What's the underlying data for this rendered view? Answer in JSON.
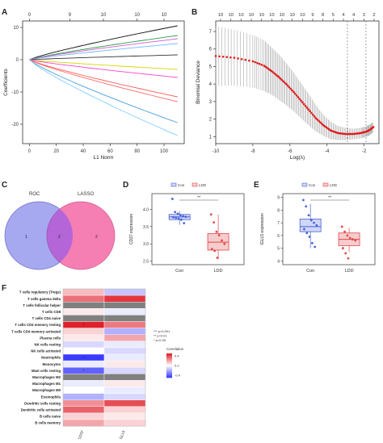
{
  "panels": {
    "A": {
      "letter": "A",
      "xlabel": "L1 Norm",
      "ylabel": "Coefficients",
      "top_ticks": [
        "0",
        "9",
        "10",
        "10",
        "10"
      ],
      "x_ticks": [
        "0",
        "20",
        "40",
        "60",
        "80",
        "100"
      ],
      "y_ticks": [
        "10",
        "0",
        "-10",
        "-20"
      ]
    },
    "B": {
      "letter": "B",
      "xlabel": "Log(λ)",
      "ylabel": "Binomial Deviance",
      "top_ticks": [
        "10",
        "10",
        "10",
        "10",
        "10",
        "10",
        "10",
        "10",
        "10",
        "9",
        "8",
        "5",
        "4",
        "4",
        "3",
        "2"
      ],
      "x_ticks": [
        "-10",
        "-8",
        "-6",
        "-4",
        "-2"
      ],
      "y_ticks": [
        "1",
        "2",
        "3",
        "4",
        "5",
        "6",
        "7"
      ]
    },
    "C": {
      "letter": "C",
      "left_label": "ROC",
      "right_label": "LASSO",
      "left_only": "1",
      "intersection": "2",
      "right_only": "2"
    },
    "D": {
      "letter": "D",
      "ylabel": "CD37 expression",
      "legend": [
        "Con",
        "LDD"
      ],
      "groups": [
        "Con",
        "LDD"
      ],
      "signif": "**",
      "y_ticks": [
        "4.0",
        "3.5",
        "3.0",
        "2.5"
      ]
    },
    "E": {
      "letter": "E",
      "ylabel": "IGLL5 expression",
      "legend": [
        "Con",
        "LDD"
      ],
      "groups": [
        "Con",
        "LDD"
      ],
      "signif": "**",
      "y_ticks": [
        "9",
        "8",
        "7",
        "6",
        "5",
        "4"
      ]
    },
    "F": {
      "letter": "F",
      "rows": [
        "T cells regulatory (Tregs)",
        "T cells gamma delta",
        "T cells follicular helper",
        "T cells CD8",
        "T cells CD4 naive",
        "T cells CD4 memory resting",
        "T cells CD4 memory activated",
        "Plasma cells",
        "NK cells resting",
        "NK cells activated",
        "Neutrophils",
        "Monocytes",
        "Mast cells resting",
        "Macrophages M2",
        "Macrophages M1",
        "Macrophages M0",
        "Eosinophils",
        "Dendritic cells resting",
        "Dendritic cells activated",
        "B cells naive",
        "B cells memory"
      ],
      "cols": [
        "CD37",
        "IGLL5"
      ],
      "legend_sig": [
        "*** p<0.001",
        "** p<0.01",
        "* p<0.05"
      ],
      "legend_title": "Correlation",
      "legend_ticks": [
        "0.4",
        "0.0",
        "-0.4"
      ]
    }
  },
  "chart_data": [
    {
      "type": "line",
      "title": "",
      "xlabel": "L1 Norm",
      "ylabel": "Coefficients",
      "xlim": [
        -5,
        115
      ],
      "ylim": [
        -26,
        12
      ],
      "series": [
        {
          "color": "#111111",
          "x": [
            0,
            110
          ],
          "y": [
            0,
            10.5
          ]
        },
        {
          "color": "#2a9d4a",
          "x": [
            0,
            110
          ],
          "y": [
            0,
            7.5
          ]
        },
        {
          "color": "#d65bd0",
          "x": [
            0,
            110
          ],
          "y": [
            0,
            6.5
          ]
        },
        {
          "color": "#6fb6ff",
          "x": [
            0,
            110
          ],
          "y": [
            0,
            5.0
          ]
        },
        {
          "color": "#333333",
          "x": [
            0,
            110
          ],
          "y": [
            0,
            1.5
          ]
        },
        {
          "color": "#d6d600",
          "x": [
            0,
            110
          ],
          "y": [
            0,
            -3.0
          ]
        },
        {
          "color": "#ff3fd0",
          "x": [
            0,
            110
          ],
          "y": [
            0,
            -5.5
          ]
        },
        {
          "color": "#ff5a5a",
          "x": [
            0,
            110
          ],
          "y": [
            0,
            -11.5
          ]
        },
        {
          "color": "#ff6a6a",
          "x": [
            0,
            110
          ],
          "y": [
            0,
            -13.0
          ]
        },
        {
          "color": "#4a9fe0",
          "x": [
            0,
            110
          ],
          "y": [
            0,
            -19.5
          ]
        },
        {
          "color": "#7fd0ff",
          "x": [
            0,
            110
          ],
          "y": [
            0,
            -23.5
          ]
        }
      ]
    },
    {
      "type": "line",
      "title": "",
      "xlabel": "Log(λ)",
      "ylabel": "Binomial Deviance",
      "xlim": [
        -10,
        -1.2
      ],
      "ylim": [
        0.6,
        7.6
      ],
      "vlines": [
        -2.9,
        -1.9
      ],
      "series": [
        {
          "x": [
            -10,
            -9.0,
            -8.0,
            -7.4,
            -7.0,
            -6.6,
            -6.2,
            -5.8,
            -5.4,
            -5.0,
            -4.6,
            -4.2,
            -3.8,
            -3.4,
            -3.0,
            -2.6,
            -2.2,
            -1.9,
            -1.7,
            -1.5
          ],
          "y": [
            5.6,
            5.5,
            5.3,
            5.05,
            4.75,
            4.4,
            4.0,
            3.55,
            3.05,
            2.55,
            2.05,
            1.65,
            1.35,
            1.2,
            1.15,
            1.15,
            1.2,
            1.28,
            1.38,
            1.55
          ],
          "err": [
            1.7,
            1.6,
            1.5,
            1.45,
            1.35,
            1.3,
            1.2,
            1.1,
            1.0,
            0.9,
            0.75,
            0.6,
            0.5,
            0.4,
            0.35,
            0.3,
            0.3,
            0.3,
            0.3,
            0.3
          ]
        }
      ]
    },
    {
      "type": "scatter",
      "title": "",
      "ylabel": "CD37 expression",
      "categories": [
        "Con",
        "LDD"
      ],
      "ylim": [
        2.4,
        4.45
      ],
      "box": [
        {
          "min": 3.55,
          "q1": 3.7,
          "median": 3.78,
          "q3": 3.85,
          "max": 3.95
        },
        {
          "min": 2.55,
          "q1": 2.82,
          "median": 3.05,
          "q3": 3.3,
          "max": 3.85
        }
      ],
      "points": [
        [
          4.3,
          3.92,
          3.87,
          3.83,
          3.8,
          3.78,
          3.77,
          3.75,
          3.73,
          3.7,
          3.6
        ],
        [
          3.85,
          3.62,
          3.35,
          3.25,
          3.1,
          3.0,
          2.85,
          2.8,
          2.6
        ]
      ]
    },
    {
      "type": "scatter",
      "title": "",
      "ylabel": "IGLL5 expression",
      "categories": [
        "Con",
        "LDD"
      ],
      "ylim": [
        3.7,
        9.3
      ],
      "box": [
        {
          "min": 5.0,
          "q1": 6.3,
          "median": 6.7,
          "q3": 7.3,
          "max": 8.5
        },
        {
          "min": 4.7,
          "q1": 5.2,
          "median": 5.7,
          "q3": 6.2,
          "max": 6.6
        }
      ],
      "points": [
        [
          8.8,
          8.3,
          7.6,
          7.2,
          7.0,
          6.8,
          6.5,
          6.2,
          5.9,
          5.4,
          5.1
        ],
        [
          6.7,
          6.3,
          6.0,
          5.8,
          5.7,
          5.6,
          5.0,
          4.6,
          4.2
        ]
      ]
    },
    {
      "type": "heatmap",
      "title": "",
      "x": [
        "CD37",
        "IGLL5"
      ],
      "y": [
        "T cells regulatory (Tregs)",
        "T cells gamma delta",
        "T cells follicular helper",
        "T cells CD8",
        "T cells CD4 naive",
        "T cells CD4 memory resting",
        "T cells CD4 memory activated",
        "Plasma cells",
        "NK cells resting",
        "NK cells activated",
        "Neutrophils",
        "Monocytes",
        "Mast cells resting",
        "Macrophages M2",
        "Macrophages M1",
        "Macrophages M0",
        "Eosinophils",
        "Dendritic cells resting",
        "Dendritic cells activated",
        "B cells naive",
        "B cells memory"
      ],
      "values": [
        [
          0.15,
          -0.15
        ],
        [
          0.32,
          0.45
        ],
        [
          null,
          null
        ],
        [
          0.05,
          -0.05
        ],
        [
          null,
          null
        ],
        [
          0.55,
          0.3
        ],
        [
          0.1,
          -0.2
        ],
        [
          0.05,
          0.2
        ],
        [
          -0.1,
          -0.05
        ],
        [
          0.0,
          -0.1
        ],
        [
          -0.5,
          -0.05
        ],
        [
          -0.05,
          0.05
        ],
        [
          -0.4,
          -0.1
        ],
        [
          null,
          null
        ],
        [
          -0.05,
          0.05
        ],
        [
          0.0,
          -0.05
        ],
        [
          -0.2,
          -0.1
        ],
        [
          0.25,
          0.4
        ],
        [
          0.35,
          0.1
        ],
        [
          0.1,
          0.05
        ],
        [
          0.2,
          0.1
        ]
      ],
      "stars": [
        [
          "",
          ""
        ],
        [
          "",
          ""
        ],
        [
          "",
          ""
        ],
        [
          "",
          ""
        ],
        [
          "",
          ""
        ],
        [
          "*",
          ""
        ],
        [
          "",
          ""
        ],
        [
          "",
          ""
        ],
        [
          "",
          ""
        ],
        [
          "",
          ""
        ],
        [
          "*",
          ""
        ],
        [
          "",
          ""
        ],
        [
          "*",
          ""
        ],
        [
          "",
          ""
        ],
        [
          "",
          ""
        ],
        [
          "",
          ""
        ],
        [
          "",
          ""
        ],
        [
          "",
          ""
        ],
        [
          "",
          ""
        ],
        [
          "",
          ""
        ],
        [
          "",
          ""
        ]
      ],
      "colorscale": {
        "low": "#3b3bff",
        "mid": "#ffffff",
        "high": "#e0202a",
        "na": "#808080"
      },
      "range": [
        -0.5,
        0.5
      ]
    }
  ]
}
